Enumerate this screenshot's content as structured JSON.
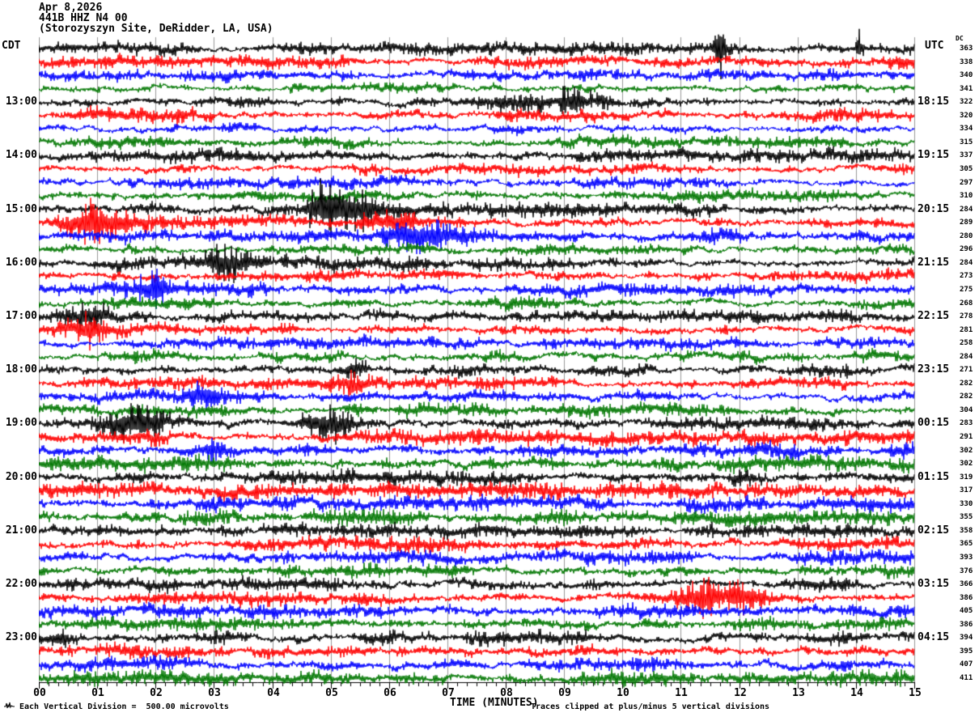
{
  "header": {
    "date": "Apr 8,2026",
    "station": "441B HHZ N4 00",
    "site": "(Storozyszyn Site, DeRidder, LA, USA)"
  },
  "axes": {
    "left_tz": "CDT",
    "right_tz": "UTC",
    "dc_label": "DC",
    "x_title": "TIME (MINUTES)",
    "x_ticks": [
      "00",
      "01",
      "02",
      "03",
      "04",
      "05",
      "06",
      "07",
      "08",
      "09",
      "10",
      "11",
      "12",
      "13",
      "14",
      "15"
    ]
  },
  "footer": {
    "scale_note": "Each Vertical Division =  500.00 microvolts",
    "clip_note": "Traces clipped at plus/minus 5 vertical divisions"
  },
  "chart_data": {
    "type": "line",
    "subtype": "helicorder-seismogram",
    "title": "441B HHZ N4 00 — Storozyszyn Site, DeRidder, LA, USA — Apr 8,2026",
    "xlabel": "TIME (MINUTES)",
    "x_range_minutes": [
      0,
      15
    ],
    "minutes_per_row": 15,
    "rows_count": 48,
    "grid": "on",
    "colors": {
      "trace_cycle": [
        "#000000",
        "#ff0000",
        "#0000ff",
        "#007700"
      ],
      "grid_line": "#999999",
      "axis": "#000000"
    },
    "rows": [
      {
        "cdt": "",
        "utc": "",
        "dc": "363"
      },
      {
        "cdt": "",
        "utc": "",
        "dc": "338"
      },
      {
        "cdt": "",
        "utc": "",
        "dc": "340"
      },
      {
        "cdt": "",
        "utc": "",
        "dc": "341"
      },
      {
        "cdt": "13:00",
        "utc": "18:15",
        "dc": "322"
      },
      {
        "cdt": "",
        "utc": "",
        "dc": "320"
      },
      {
        "cdt": "",
        "utc": "",
        "dc": "334"
      },
      {
        "cdt": "",
        "utc": "",
        "dc": "315"
      },
      {
        "cdt": "14:00",
        "utc": "19:15",
        "dc": "337"
      },
      {
        "cdt": "",
        "utc": "",
        "dc": "305"
      },
      {
        "cdt": "",
        "utc": "",
        "dc": "297"
      },
      {
        "cdt": "",
        "utc": "",
        "dc": "310"
      },
      {
        "cdt": "15:00",
        "utc": "20:15",
        "dc": "284"
      },
      {
        "cdt": "",
        "utc": "",
        "dc": "289"
      },
      {
        "cdt": "",
        "utc": "",
        "dc": "280"
      },
      {
        "cdt": "",
        "utc": "",
        "dc": "296"
      },
      {
        "cdt": "16:00",
        "utc": "21:15",
        "dc": "284"
      },
      {
        "cdt": "",
        "utc": "",
        "dc": "273"
      },
      {
        "cdt": "",
        "utc": "",
        "dc": "275"
      },
      {
        "cdt": "",
        "utc": "",
        "dc": "268"
      },
      {
        "cdt": "17:00",
        "utc": "22:15",
        "dc": "278"
      },
      {
        "cdt": "",
        "utc": "",
        "dc": "281"
      },
      {
        "cdt": "",
        "utc": "",
        "dc": "258"
      },
      {
        "cdt": "",
        "utc": "",
        "dc": "284"
      },
      {
        "cdt": "18:00",
        "utc": "23:15",
        "dc": "271"
      },
      {
        "cdt": "",
        "utc": "",
        "dc": "282"
      },
      {
        "cdt": "",
        "utc": "",
        "dc": "282"
      },
      {
        "cdt": "",
        "utc": "",
        "dc": "304"
      },
      {
        "cdt": "19:00",
        "utc": "00:15",
        "dc": "283"
      },
      {
        "cdt": "",
        "utc": "",
        "dc": "291"
      },
      {
        "cdt": "",
        "utc": "",
        "dc": "302"
      },
      {
        "cdt": "",
        "utc": "",
        "dc": "302"
      },
      {
        "cdt": "20:00",
        "utc": "01:15",
        "dc": "319"
      },
      {
        "cdt": "",
        "utc": "",
        "dc": "317"
      },
      {
        "cdt": "",
        "utc": "",
        "dc": "330"
      },
      {
        "cdt": "",
        "utc": "",
        "dc": "355"
      },
      {
        "cdt": "21:00",
        "utc": "02:15",
        "dc": "358"
      },
      {
        "cdt": "",
        "utc": "",
        "dc": "365"
      },
      {
        "cdt": "",
        "utc": "",
        "dc": "393"
      },
      {
        "cdt": "",
        "utc": "",
        "dc": "376"
      },
      {
        "cdt": "22:00",
        "utc": "03:15",
        "dc": "366"
      },
      {
        "cdt": "",
        "utc": "",
        "dc": "386"
      },
      {
        "cdt": "",
        "utc": "",
        "dc": "405"
      },
      {
        "cdt": "",
        "utc": "",
        "dc": "386"
      },
      {
        "cdt": "23:00",
        "utc": "04:15",
        "dc": "394"
      },
      {
        "cdt": "",
        "utc": "",
        "dc": "395"
      },
      {
        "cdt": "",
        "utc": "",
        "dc": "407"
      },
      {
        "cdt": "",
        "utc": "",
        "dc": "411"
      }
    ],
    "row_gain": [
      1.0,
      1.0,
      0.95,
      0.9,
      1.1,
      1.0,
      0.9,
      0.95,
      1.0,
      0.9,
      0.85,
      0.9,
      1.1,
      1.05,
      1.0,
      0.9,
      1.05,
      0.95,
      1.0,
      0.95,
      1.0,
      0.95,
      0.9,
      1.0,
      1.0,
      0.95,
      0.9,
      1.05,
      1.1,
      1.15,
      1.25,
      1.2,
      1.15,
      1.2,
      1.25,
      1.3,
      1.1,
      1.15,
      1.1,
      1.15,
      1.1,
      1.2,
      1.1,
      1.05,
      1.1,
      1.15,
      1.1,
      1.15
    ],
    "events": [
      [
        0,
        11.65,
        0.08,
        5.0
      ],
      [
        0,
        14.05,
        0.06,
        4.0
      ],
      [
        4,
        8.4,
        1.1,
        2.6
      ],
      [
        4,
        9.3,
        0.4,
        2.0
      ],
      [
        5,
        2.1,
        0.7,
        2.2
      ],
      [
        9,
        5.6,
        0.25,
        1.8
      ],
      [
        12,
        5.2,
        0.55,
        2.8
      ],
      [
        12,
        4.8,
        0.2,
        2.0
      ],
      [
        13,
        1.1,
        0.5,
        2.6
      ],
      [
        13,
        0.7,
        0.3,
        2.0
      ],
      [
        13,
        5.9,
        0.5,
        2.2
      ],
      [
        14,
        6.6,
        0.6,
        2.4
      ],
      [
        14,
        11.7,
        0.45,
        2.2
      ],
      [
        16,
        3.2,
        0.4,
        1.8
      ],
      [
        16,
        6.6,
        0.3,
        1.6
      ],
      [
        18,
        2.0,
        0.5,
        2.0
      ],
      [
        18,
        3.7,
        0.35,
        1.7
      ],
      [
        20,
        0.9,
        0.4,
        1.7
      ],
      [
        21,
        0.8,
        0.4,
        2.0
      ],
      [
        24,
        5.4,
        0.3,
        1.7
      ],
      [
        25,
        5.4,
        0.35,
        2.8
      ],
      [
        26,
        2.8,
        0.3,
        1.8
      ],
      [
        28,
        1.7,
        0.4,
        1.9
      ],
      [
        28,
        5.0,
        0.5,
        2.0
      ],
      [
        30,
        2.8,
        0.4,
        2.0
      ],
      [
        32,
        12.1,
        0.3,
        1.9
      ],
      [
        41,
        11.7,
        0.6,
        2.2
      ],
      [
        44,
        0.35,
        0.3,
        1.8
      ]
    ]
  }
}
